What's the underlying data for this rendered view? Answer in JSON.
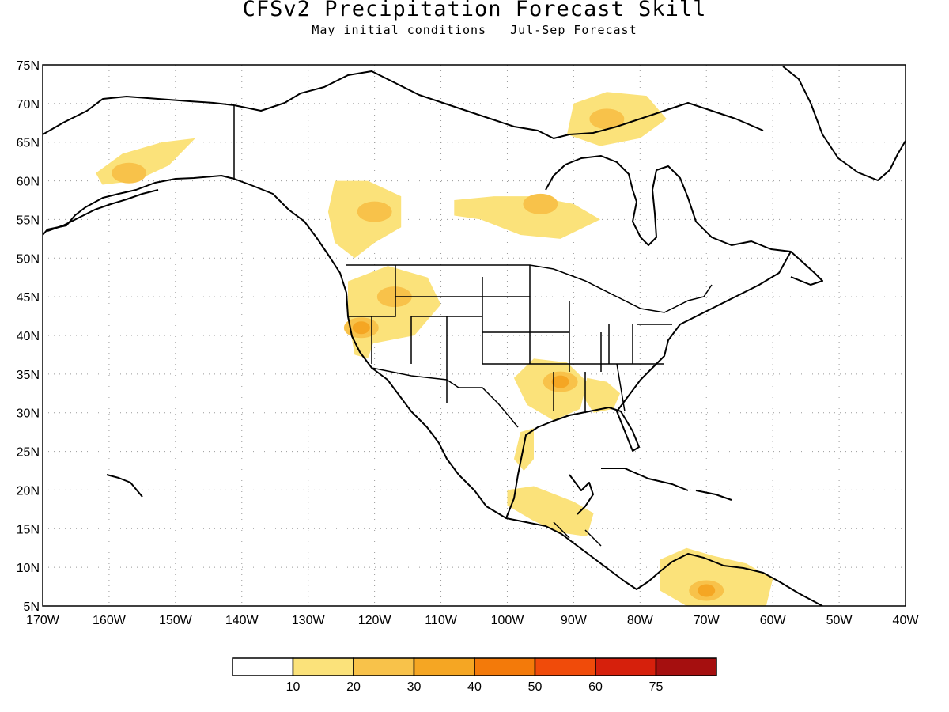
{
  "title": "CFSv2 Precipitation Forecast Skill",
  "subtitle": "May initial conditions   Jul-Sep Forecast",
  "map": {
    "lat_range": [
      5,
      75
    ],
    "lon_range": [
      -170,
      -40
    ],
    "lat_ticks": [
      "5N",
      "10N",
      "15N",
      "20N",
      "25N",
      "30N",
      "35N",
      "40N",
      "45N",
      "50N",
      "55N",
      "60N",
      "65N",
      "70N",
      "75N"
    ],
    "lon_ticks": [
      "170W",
      "160W",
      "150W",
      "140W",
      "130W",
      "120W",
      "110W",
      "100W",
      "90W",
      "80W",
      "70W",
      "60W",
      "50W",
      "40W"
    ],
    "grid": "dotted"
  },
  "colorbar": {
    "labels": [
      "10",
      "20",
      "30",
      "40",
      "50",
      "60",
      "75"
    ],
    "colors": [
      "#ffffff",
      "#fbe27a",
      "#f8c24a",
      "#f5a623",
      "#f37a0a",
      "#f04b0a",
      "#d6200c",
      "#a50f0f"
    ]
  },
  "skill_regions": [
    {
      "name": "alaska",
      "lon": -157,
      "lat": 61,
      "level": 2
    },
    {
      "name": "sw-canada",
      "lon": -120,
      "lat": 56,
      "level": 2
    },
    {
      "name": "northern-canada",
      "lon": -95,
      "lat": 57,
      "level": 2
    },
    {
      "name": "arctic",
      "lon": -85,
      "lat": 68,
      "level": 2
    },
    {
      "name": "northwest-us",
      "lon": -117,
      "lat": 45,
      "level": 2
    },
    {
      "name": "california",
      "lon": -122,
      "lat": 41,
      "level": 3
    },
    {
      "name": "south-central-us",
      "lon": -92,
      "lat": 34,
      "level": 3
    },
    {
      "name": "southeast-us",
      "lon": -86,
      "lat": 32,
      "level": 1
    },
    {
      "name": "gulf-mexico",
      "lon": -97,
      "lat": 25,
      "level": 1
    },
    {
      "name": "central-america",
      "lon": -92,
      "lat": 16,
      "level": 1
    },
    {
      "name": "venezuela",
      "lon": -70,
      "lat": 7,
      "level": 3
    }
  ]
}
